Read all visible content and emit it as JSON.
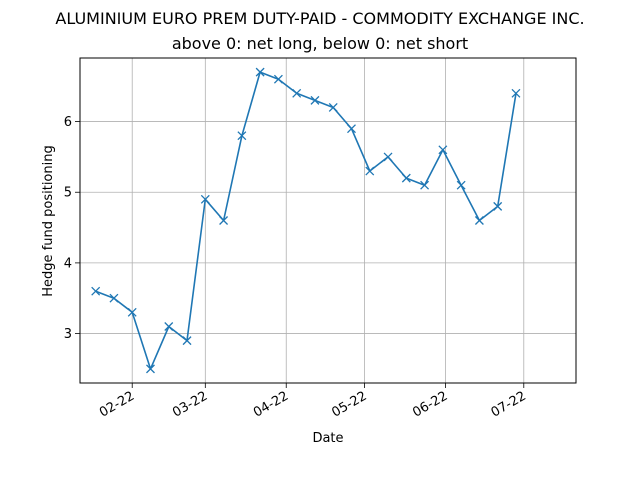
{
  "chart_data": {
    "type": "line",
    "title": "ALUMINIUM EURO PREM DUTY-PAID - COMMODITY EXCHANGE INC.",
    "subtitle": "above 0: net long, below 0: net short",
    "xlabel": "Date",
    "ylabel": "Hedge fund positioning",
    "x_ticks": [
      "02-22",
      "03-22",
      "04-22",
      "05-22",
      "06-22",
      "07-22"
    ],
    "y_ticks": [
      3,
      4,
      5,
      6
    ],
    "ylim": [
      2.3,
      6.9
    ],
    "xlim": [
      "2022-01-12",
      "2022-07-21"
    ],
    "grid": true,
    "marker": "x",
    "color": "#1f77b4",
    "series": [
      {
        "dates": [
          "2022-01-18",
          "2022-01-25",
          "2022-02-01",
          "2022-02-08",
          "2022-02-15",
          "2022-02-22",
          "2022-03-01",
          "2022-03-08",
          "2022-03-15",
          "2022-03-22",
          "2022-03-29",
          "2022-04-05",
          "2022-04-12",
          "2022-04-19",
          "2022-04-26",
          "2022-05-03",
          "2022-05-10",
          "2022-05-17",
          "2022-05-24",
          "2022-05-31",
          "2022-06-07",
          "2022-06-14",
          "2022-06-21",
          "2022-06-28",
          "2022-07-05"
        ],
        "values": [
          3.6,
          3.5,
          3.3,
          2.5,
          3.1,
          2.9,
          4.9,
          4.6,
          5.8,
          6.7,
          6.6,
          6.4,
          6.3,
          6.2,
          5.9,
          5.3,
          5.5,
          5.2,
          5.1,
          5.6,
          5.1,
          4.6,
          4.8,
          6.4,
          null
        ]
      }
    ]
  }
}
